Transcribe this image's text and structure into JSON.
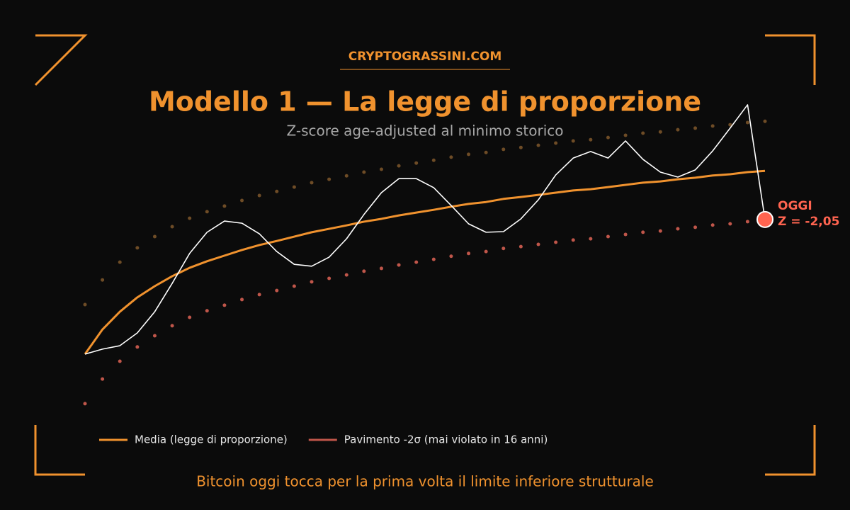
{
  "chart_data": {
    "type": "line",
    "brand": "CRYPTOGRASSINI.COM",
    "title": "Modello 1 — La legge di proporzione",
    "subtitle": "Z-score age-adjusted al minimo storico",
    "caption": "Bitcoin oggi tocca per la prima volta il limite inferiore strutturale",
    "annotations": [
      "OGGI",
      "Z = -2,05"
    ],
    "x": [
      0,
      1,
      2,
      3,
      4,
      5,
      6,
      7,
      8,
      9,
      10,
      11,
      12,
      13,
      14,
      15,
      16,
      17,
      18,
      19,
      20,
      21,
      22,
      23,
      24,
      25,
      26,
      27,
      28,
      29,
      30,
      31,
      32,
      33,
      34,
      35,
      36,
      37,
      38,
      39
    ],
    "xlim": [
      0,
      39
    ],
    "ylim": [
      0,
      100
    ],
    "series": [
      {
        "color": "#ffffff",
        "style": "solid",
        "values": [
          18.2,
          19.8,
          20.9,
          25,
          31.8,
          40.9,
          50.5,
          57.3,
          60.9,
          60.2,
          56.8,
          51.1,
          47,
          46.4,
          49.3,
          55.2,
          63,
          70,
          74.5,
          74.5,
          71.6,
          65.9,
          60,
          57.3,
          57.5,
          61.6,
          67.7,
          75.7,
          81.1,
          83.2,
          81.1,
          86.6,
          80.7,
          76.6,
          75,
          77.3,
          83.4,
          90.7,
          98.2,
          61.4
        ]
      },
      {
        "name": "Media (legge di proporzione)",
        "color": "#f0922e",
        "style": "solid",
        "values": [
          18.2,
          26.1,
          31.8,
          36.4,
          40,
          43.2,
          45.9,
          48,
          49.8,
          51.6,
          53.2,
          54.5,
          55.9,
          57.3,
          58.4,
          59.5,
          60.7,
          61.6,
          62.7,
          63.6,
          64.5,
          65.5,
          66.4,
          67,
          68,
          68.6,
          69.3,
          70,
          70.7,
          71.1,
          71.8,
          72.5,
          73.2,
          73.6,
          74.3,
          74.8,
          75.5,
          75.9,
          76.6,
          77
        ]
      },
      {
        "name": "Pavimento -2σ (mai violato in 16 anni)",
        "color": "#c0564a",
        "style": "dotted",
        "values": [
          2.3,
          10.2,
          15.9,
          20.5,
          24.1,
          27.3,
          30,
          32.1,
          33.9,
          35.7,
          37.3,
          38.6,
          40,
          41.4,
          42.5,
          43.6,
          44.8,
          45.7,
          46.8,
          47.7,
          48.6,
          49.6,
          50.5,
          51.1,
          52.1,
          52.7,
          53.4,
          54.1,
          54.8,
          55.2,
          55.9,
          56.6,
          57.3,
          57.7,
          58.4,
          58.9,
          59.6,
          60,
          60.7,
          61.1
        ]
      },
      {
        "color": "#6e4c26",
        "style": "dotted",
        "values": [
          34.1,
          42,
          47.7,
          52.3,
          55.9,
          59.1,
          61.8,
          63.9,
          65.7,
          67.5,
          69.1,
          70.4,
          71.8,
          73.2,
          74.3,
          75.4,
          76.6,
          77.5,
          78.6,
          79.5,
          80.4,
          81.4,
          82.3,
          82.9,
          83.9,
          84.5,
          85.2,
          85.9,
          86.6,
          87,
          87.7,
          88.4,
          89.1,
          89.5,
          90.2,
          90.7,
          91.4,
          91.8,
          92.5,
          92.9
        ]
      }
    ],
    "highlight_color": "#ff6450"
  }
}
